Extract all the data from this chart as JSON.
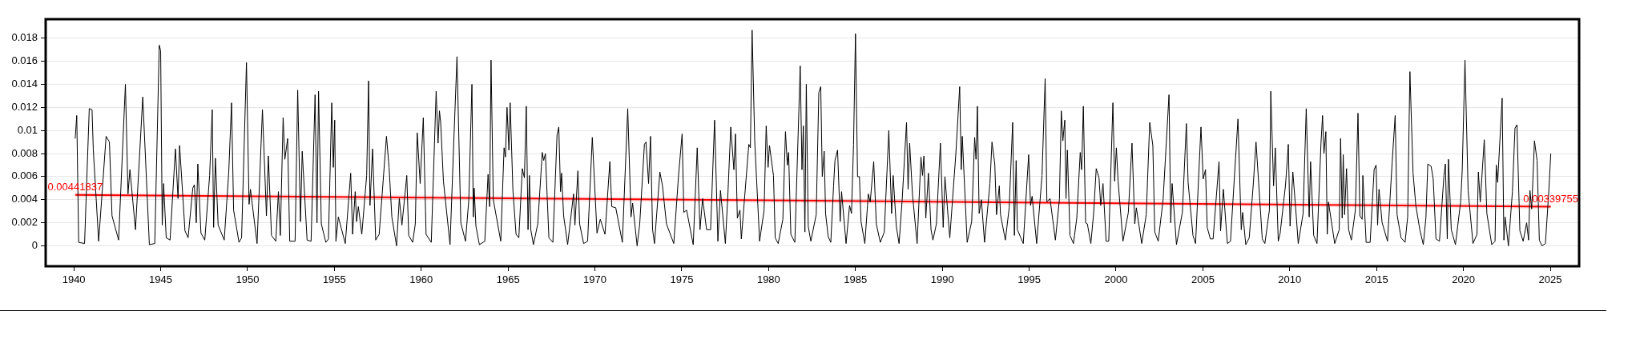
{
  "chart_data": {
    "type": "line",
    "xlim": [
      1938.38,
      2026.66
    ],
    "ylim": [
      -0.00177,
      0.01965
    ],
    "xticks": [
      1940,
      1945,
      1950,
      1955,
      1960,
      1965,
      1970,
      1975,
      1980,
      1985,
      1990,
      1995,
      2000,
      2005,
      2010,
      2015,
      2020,
      2025
    ],
    "yticks": [
      0,
      0.002,
      0.004,
      0.006,
      0.008,
      0.01,
      0.012,
      0.014,
      0.016,
      0.018
    ],
    "grid": "y",
    "annotations": [
      {
        "text": "0.00441837",
        "x": 1940.08,
        "y": 0.00441837
      },
      {
        "text": "0.00339755",
        "x": 2025.03,
        "y": 0.00339755
      }
    ],
    "series": [
      {
        "color": "#000000",
        "x": [
          1940.08,
          1940.17,
          1940.28,
          1940.62,
          1940.89,
          1941.05,
          1941.12,
          1941.43,
          1941.86,
          1942.05,
          1942.2,
          1942.58,
          1942.97,
          1943.12,
          1943.23,
          1943.55,
          1943.97,
          1944.35,
          1944.66,
          1944.92,
          1945.0,
          1945.09,
          1945.17,
          1945.32,
          1945.54,
          1945.85,
          1946.0,
          1946.09,
          1946.28,
          1946.4,
          1946.58,
          1946.85,
          1946.94,
          1947.05,
          1947.14,
          1947.32,
          1947.54,
          1947.82,
          1947.97,
          1948.05,
          1948.15,
          1948.31,
          1948.66,
          1948.92,
          1949.08,
          1949.2,
          1949.51,
          1949.66,
          1949.94,
          1950.09,
          1950.17,
          1950.55,
          1950.86,
          1951.09,
          1951.2,
          1951.38,
          1951.63,
          1951.78,
          1951.89,
          1952.05,
          1952.15,
          1952.31,
          1952.43,
          1952.74,
          1952.89,
          1953.05,
          1953.15,
          1953.43,
          1953.66,
          1953.89,
          1954.0,
          1954.09,
          1954.25,
          1954.51,
          1954.66,
          1954.85,
          1954.94,
          1955.02,
          1955.09,
          1955.23,
          1955.63,
          1955.94,
          1956.05,
          1956.2,
          1956.28,
          1956.38,
          1956.58,
          1956.86,
          1956.97,
          1957.05,
          1957.2,
          1957.38,
          1957.58,
          1958.0,
          1958.15,
          1958.31,
          1958.58,
          1958.74,
          1958.89,
          1959.17,
          1959.28,
          1959.51,
          1959.66,
          1959.77,
          1959.94,
          1960.12,
          1960.28,
          1960.58,
          1960.86,
          1960.97,
          1961.05,
          1961.12,
          1961.28,
          1961.66,
          1961.85,
          1962.06,
          1962.28,
          1962.55,
          1962.74,
          1962.92,
          1963.0,
          1963.05,
          1963.15,
          1963.35,
          1963.66,
          1963.85,
          1963.94,
          1964.02,
          1964.15,
          1964.58,
          1964.77,
          1964.85,
          1964.94,
          1965.05,
          1965.12,
          1965.28,
          1965.46,
          1965.62,
          1965.82,
          1965.94,
          1966.05,
          1966.15,
          1966.23,
          1966.31,
          1966.46,
          1966.71,
          1966.97,
          1967.05,
          1967.15,
          1967.35,
          1967.58,
          1967.82,
          1967.92,
          1968.02,
          1968.08,
          1968.2,
          1968.43,
          1968.77,
          1968.85,
          1969.02,
          1969.12,
          1969.35,
          1969.58,
          1969.85,
          1970.12,
          1970.31,
          1970.58,
          1970.86,
          1970.97,
          1971.2,
          1971.58,
          1971.89,
          1972.08,
          1972.17,
          1972.43,
          1972.58,
          1972.85,
          1972.94,
          1973.09,
          1973.2,
          1973.32,
          1973.43,
          1973.74,
          1973.89,
          1974.12,
          1974.54,
          1974.82,
          1975.02,
          1975.12,
          1975.28,
          1975.66,
          1975.89,
          1976.05,
          1976.2,
          1976.43,
          1976.66,
          1976.89,
          1977.08,
          1977.23,
          1977.51,
          1977.66,
          1977.82,
          1978.0,
          1978.09,
          1978.2,
          1978.35,
          1978.43,
          1978.86,
          1978.95,
          1979.05,
          1979.2,
          1979.48,
          1979.74,
          1979.86,
          1979.97,
          1980.05,
          1980.28,
          1980.38,
          1980.55,
          1980.82,
          1980.97,
          1981.08,
          1981.15,
          1981.28,
          1981.51,
          1981.82,
          1981.92,
          1982.0,
          1982.09,
          1982.17,
          1982.28,
          1982.43,
          1982.74,
          1982.89,
          1983.0,
          1983.09,
          1983.2,
          1983.28,
          1983.43,
          1983.58,
          1983.74,
          1983.82,
          1983.97,
          1984.12,
          1984.2,
          1984.46,
          1984.66,
          1984.77,
          1984.89,
          1985.0,
          1985.12,
          1985.23,
          1985.32,
          1985.54,
          1985.74,
          1985.85,
          1986.05,
          1986.2,
          1986.43,
          1986.66,
          1986.92,
          1987.08,
          1987.17,
          1987.35,
          1987.51,
          1987.69,
          1987.94,
          1988.03,
          1988.12,
          1988.28,
          1988.55,
          1988.77,
          1988.86,
          1988.94,
          1989.05,
          1989.2,
          1989.35,
          1989.46,
          1989.66,
          1989.89,
          1990.05,
          1990.15,
          1990.43,
          1990.78,
          1991.0,
          1991.09,
          1991.15,
          1991.43,
          1991.69,
          1991.86,
          1991.94,
          1992.02,
          1992.12,
          1992.25,
          1992.43,
          1992.74,
          1992.86,
          1993.02,
          1993.12,
          1993.28,
          1993.35,
          1993.63,
          1993.85,
          1994.05,
          1994.15,
          1994.25,
          1994.32,
          1994.66,
          1994.97,
          1995.08,
          1995.17,
          1995.43,
          1995.74,
          1995.92,
          1996.02,
          1996.2,
          1996.51,
          1996.74,
          1996.85,
          1996.94,
          1997.05,
          1997.12,
          1997.2,
          1997.35,
          1997.55,
          1997.74,
          1997.94,
          1998.02,
          1998.12,
          1998.25,
          1998.35,
          1998.55,
          1998.71,
          1998.86,
          1999.02,
          1999.12,
          1999.25,
          1999.43,
          1999.58,
          1999.82,
          1999.92,
          2000.02,
          2000.12,
          2000.4,
          2000.71,
          2000.92,
          2001.08,
          2001.17,
          2001.48,
          2001.74,
          2001.94,
          2002.12,
          2002.23,
          2002.43,
          2002.71,
          2003.05,
          2003.15,
          2003.23,
          2003.48,
          2003.82,
          2004.05,
          2004.15,
          2004.43,
          2004.58,
          2004.89,
          2005.02,
          2005.15,
          2005.25,
          2005.43,
          2005.59,
          2005.7,
          2005.93,
          2006.02,
          2006.18,
          2006.41,
          2006.59,
          2007.02,
          2007.21,
          2007.29,
          2007.47,
          2007.67,
          2007.91,
          2008.06,
          2008.42,
          2008.57,
          2008.83,
          2008.91,
          2009.07,
          2009.17,
          2009.34,
          2009.45,
          2009.76,
          2009.92,
          2010.02,
          2010.18,
          2010.38,
          2010.49,
          2010.77,
          2010.95,
          2011.12,
          2011.2,
          2011.38,
          2011.57,
          2011.8,
          2011.89,
          2011.97,
          2012.08,
          2012.16,
          2012.23,
          2012.59,
          2012.85,
          2012.93,
          2013.02,
          2013.08,
          2013.16,
          2013.27,
          2013.39,
          2013.55,
          2013.78,
          2013.93,
          2014.04,
          2014.17,
          2014.21,
          2014.4,
          2014.63,
          2014.86,
          2014.97,
          2015.06,
          2015.14,
          2015.32,
          2015.63,
          2015.9,
          2016.07,
          2016.18,
          2016.41,
          2016.64,
          2016.79,
          2016.92,
          2017.1,
          2017.26,
          2017.49,
          2017.69,
          2017.84,
          2017.95,
          2018.14,
          2018.26,
          2018.42,
          2018.62,
          2018.88,
          2018.96,
          2019.07,
          2019.14,
          2019.3,
          2019.54,
          2019.84,
          2019.93,
          2020.09,
          2020.27,
          2020.55,
          2020.78,
          2020.86,
          2020.97,
          2021.2,
          2021.35,
          2021.63,
          2021.82,
          2021.89,
          2021.97,
          2022.23,
          2022.33,
          2022.4,
          2022.59,
          2022.82,
          2022.97,
          2023.08,
          2023.25,
          2023.44,
          2023.64,
          2023.75,
          2023.83,
          2023.93,
          2024.09,
          2024.24,
          2024.37,
          2024.52,
          2024.72,
          2024.91,
          2025.03
        ],
        "values": [
          0.0093,
          0.0113,
          0.0003,
          0.0002,
          0.0119,
          0.0118,
          0.0084,
          0.0004,
          0.0095,
          0.009,
          0.0026,
          0.0005,
          0.014,
          0.0045,
          0.0066,
          0.0014,
          0.0129,
          0.0001,
          0.0002,
          0.0174,
          0.0169,
          0.0018,
          0.0054,
          0.0007,
          0.0005,
          0.0084,
          0.0041,
          0.0087,
          0.0042,
          0.0013,
          0.0007,
          0.005,
          0.0053,
          0.002,
          0.0071,
          0.0011,
          0.0005,
          0.0061,
          0.0118,
          0.0016,
          0.0076,
          0.0018,
          0.0005,
          0.0064,
          0.0124,
          0.0031,
          0.0003,
          0.0007,
          0.0159,
          0.0036,
          0.0049,
          0.0002,
          0.0118,
          0.0026,
          0.0078,
          0.0009,
          0.0004,
          0.0047,
          0.0009,
          0.0111,
          0.0075,
          0.0093,
          0.0004,
          0.0004,
          0.0135,
          0.0021,
          0.0082,
          0.0005,
          0.0004,
          0.0131,
          0.002,
          0.0134,
          0.0019,
          0.0003,
          0.0006,
          0.0124,
          0.0068,
          0.0109,
          0.0004,
          0.0025,
          0.0002,
          0.0063,
          0.001,
          0.0047,
          0.0021,
          0.0034,
          0.001,
          0.0061,
          0.0143,
          0.0035,
          0.0084,
          0.0005,
          0.001,
          0.0095,
          0.0068,
          0.0025,
          0,
          0.0041,
          0.0018,
          0.0061,
          0.0009,
          0.0003,
          0.0019,
          0.0098,
          0.0054,
          0.0111,
          0.001,
          0.0003,
          0.0134,
          0.0089,
          0.0117,
          0.0107,
          0.0056,
          0.0001,
          0.008,
          0.0164,
          0.002,
          0.0004,
          0.004,
          0.014,
          0.0025,
          0.005,
          0.0017,
          0.0001,
          0.0004,
          0.0062,
          0.0034,
          0.0161,
          0.004,
          0.0004,
          0.0085,
          0.0077,
          0.012,
          0.0083,
          0.0124,
          0.0048,
          0.001,
          0.0007,
          0.0067,
          0.0059,
          0.0121,
          0.0014,
          0.0061,
          0.0014,
          0.0001,
          0.0019,
          0.0081,
          0.0074,
          0.008,
          0.0007,
          0.0003,
          0.0096,
          0.0103,
          0.0047,
          0.0063,
          0.0026,
          0.0001,
          0.0045,
          0.0018,
          0.0065,
          0.0019,
          0.0002,
          0.0004,
          0.0094,
          0.0011,
          0.0023,
          0.001,
          0.0073,
          0.0034,
          0.0033,
          0.0003,
          0.0119,
          0.0025,
          0.0037,
          0,
          0.0019,
          0.0088,
          0.009,
          0.0054,
          0.0095,
          0.0014,
          0.0002,
          0.0064,
          0.0052,
          0.0019,
          0.0002,
          0.0062,
          0.0097,
          0.0029,
          0.0031,
          0.0001,
          0.0085,
          0.0014,
          0.0041,
          0.0014,
          0.0014,
          0.0109,
          0.0004,
          0.0048,
          0.0002,
          0.0046,
          0.0103,
          0.0066,
          0.0097,
          0.0024,
          0.0031,
          0.0006,
          0.0088,
          0.0085,
          0.0187,
          0.0091,
          0.0004,
          0.0031,
          0.0104,
          0.0068,
          0.0087,
          0.0061,
          0.0007,
          0.0002,
          0.0023,
          0.0099,
          0.007,
          0.0081,
          0.001,
          0.0003,
          0.0156,
          0.0066,
          0.0104,
          0.0012,
          0.014,
          0.0017,
          0.0004,
          0.0027,
          0.0133,
          0.0138,
          0.006,
          0.0082,
          0.0028,
          0.0008,
          0.0003,
          0.0052,
          0.0074,
          0.0083,
          0.0021,
          0.0047,
          0.0002,
          0.0035,
          0.0028,
          0.0088,
          0.0184,
          0.006,
          0.006,
          0.0021,
          0.0002,
          0.0045,
          0.0038,
          0.0073,
          0.0019,
          0.0003,
          0.0012,
          0.01,
          0.0028,
          0.0061,
          0.0017,
          0.0002,
          0.004,
          0.0107,
          0.0049,
          0.0089,
          0.0045,
          0.0002,
          0.0077,
          0.0061,
          0.0078,
          0.0024,
          0.0063,
          0.0014,
          0.0005,
          0.0019,
          0.0089,
          0.0016,
          0.006,
          0.0007,
          0.008,
          0.0138,
          0.0066,
          0.0095,
          0.0003,
          0.0021,
          0.0094,
          0.0075,
          0.0121,
          0.0028,
          0.004,
          0.0003,
          0.0054,
          0.009,
          0.0071,
          0.0027,
          0.0052,
          0.0027,
          0.0005,
          0.0033,
          0.0107,
          0.0009,
          0.0074,
          0.0014,
          0.0002,
          0.0079,
          0.0035,
          0.0043,
          0.0002,
          0.0061,
          0.0145,
          0.0038,
          0.0041,
          0.0005,
          0.004,
          0.0117,
          0.0091,
          0.0109,
          0.0041,
          0.0083,
          0.0009,
          0.0002,
          0.0024,
          0.0081,
          0.0066,
          0.0121,
          0.002,
          0.0019,
          0.0002,
          0.0028,
          0.0067,
          0.0059,
          0.0035,
          0.0054,
          0.0004,
          0.0004,
          0.0124,
          0.0056,
          0.0085,
          0.0056,
          0.0004,
          0.0029,
          0.0089,
          0.0019,
          0.0033,
          0.0002,
          0.0027,
          0.0107,
          0.0087,
          0.0012,
          0.0004,
          0.004,
          0.0131,
          0.002,
          0.0054,
          0.0001,
          0.0029,
          0.0106,
          0.0055,
          0.0009,
          0.0002,
          0.0103,
          0.0058,
          0.0066,
          0.0016,
          0.0006,
          0.0006,
          0.0028,
          0.0073,
          0.0013,
          0.0049,
          0.0002,
          0.0004,
          0.011,
          0.0014,
          0.0029,
          0.0001,
          0.0007,
          0.0055,
          0.009,
          0.0006,
          0.0002,
          0.0031,
          0.0134,
          0.0052,
          0.0085,
          0.0004,
          0.0011,
          0.0053,
          0.0088,
          0.0017,
          0.0064,
          0.0025,
          0.0002,
          0.0028,
          0.0119,
          0.0025,
          0.0073,
          0.0009,
          0.0002,
          0.0089,
          0.0113,
          0.008,
          0.0099,
          0.001,
          0.0038,
          0.0002,
          0.0014,
          0.0093,
          0.0024,
          0.0079,
          0.0027,
          0.0067,
          0.0014,
          0.0005,
          0.0031,
          0.0115,
          0.0026,
          0.0023,
          0.0061,
          0.0003,
          0.0003,
          0.0066,
          0.007,
          0.0018,
          0.0049,
          0.002,
          0.0004,
          0.0073,
          0.0113,
          0.0027,
          0.0007,
          0.0003,
          0.0025,
          0.0151,
          0.0063,
          0.0035,
          0.0014,
          0.0001,
          0.0024,
          0.0071,
          0.0069,
          0.0058,
          0.0006,
          0.0004,
          0.0061,
          0.0071,
          0.0006,
          0.0075,
          0.0014,
          0.0001,
          0.0038,
          0.0065,
          0.0161,
          0.0048,
          0.0002,
          0.001,
          0.0064,
          0.0038,
          0.0092,
          0.0028,
          0.0001,
          0.0004,
          0.007,
          0.0055,
          0.0128,
          0.0005,
          0.0025,
          0,
          0.0047,
          0.0102,
          0.0105,
          0.0013,
          0.0004,
          0.002,
          0.0005,
          0.0048,
          0.0032,
          0.0091,
          0.0074,
          0.0005,
          0,
          0.0002,
          0.0046,
          0.008
        ]
      },
      {
        "type": "line",
        "color": "#ff0000",
        "x": [
          1940.08,
          2025.03
        ],
        "values": [
          0.00441837,
          0.00339755
        ],
        "lower": [
          0.0042,
          0.0032
        ],
        "upper": [
          0.0046,
          0.0036
        ]
      }
    ]
  }
}
